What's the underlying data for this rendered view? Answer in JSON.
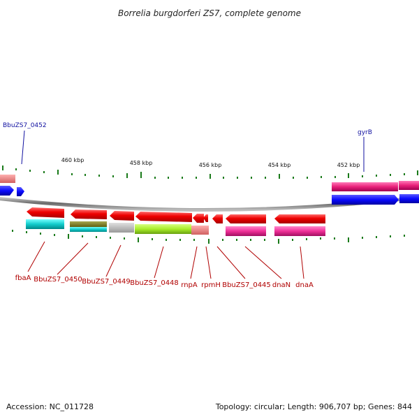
{
  "title": "Borrelia burgdorferi ZS7, complete genome",
  "kbp_labels": [
    "460 kbp",
    "458 kbp",
    "456 kbp",
    "454 kbp",
    "452 kbp"
  ],
  "top_gene_labels": [
    "BbuZS7_0452",
    "gyrB"
  ],
  "bottom_gene_labels": [
    "fbaA",
    "BbuZS7_0450",
    "BbuZS7_0449",
    "BbuZS7_0448",
    "rnpA",
    "rpmH",
    "BbuZS7_0445",
    "dnaN",
    "dnaA"
  ],
  "footer": {
    "accession": "Accession: NC_011728",
    "summary": "Topology: circular; Length: 906,707 bp; Genes: 844"
  },
  "colors": {
    "forward_gene": "#1a1aff",
    "forward_cds": "#e8207a",
    "reverse_gene": "#ee0000",
    "backbone": "#777777",
    "ticks": "#1a7a1a",
    "label_blue": "#1010a0",
    "label_red": "#b00000"
  }
}
